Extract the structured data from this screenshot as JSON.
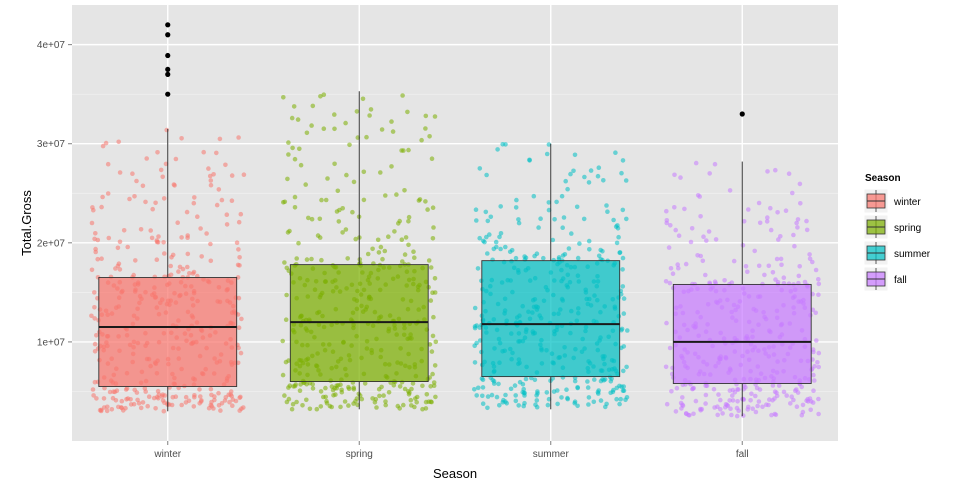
{
  "chart_data": {
    "type": "boxplot",
    "xlabel": "Season",
    "ylabel": "Total.Gross",
    "categories": [
      "winter",
      "spring",
      "summer",
      "fall"
    ],
    "ylim": [
      0,
      44000000
    ],
    "y_ticks": [
      10000000,
      20000000,
      30000000,
      40000000
    ],
    "y_tick_labels": [
      "1e+07",
      "2e+07",
      "3e+07",
      "4e+07"
    ],
    "grid": true,
    "legend": {
      "title": "Season",
      "position": "right",
      "entries": [
        "winter",
        "spring",
        "summer",
        "fall"
      ]
    },
    "colors": {
      "winter": "#F8766D",
      "spring": "#7CAE00",
      "summer": "#00BFC4",
      "fall": "#C77CFF",
      "panel": "#E5E5E5",
      "grid": "#FFFFFF"
    },
    "boxes": [
      {
        "category": "winter",
        "whisker_low": 3000000,
        "q1": 5500000,
        "median": 11500000,
        "q3": 16500000,
        "whisker_high": 31500000,
        "outliers": [
          35000000,
          37000000,
          37500000,
          38900000,
          41000000,
          42000000
        ]
      },
      {
        "category": "spring",
        "whisker_low": 3200000,
        "q1": 6000000,
        "median": 12000000,
        "q3": 17800000,
        "whisker_high": 35300000,
        "outliers": []
      },
      {
        "category": "summer",
        "whisker_low": 3200000,
        "q1": 6500000,
        "median": 11800000,
        "q3": 18200000,
        "whisker_high": 30000000,
        "outliers": []
      },
      {
        "category": "fall",
        "whisker_low": 2500000,
        "q1": 5800000,
        "median": 10000000,
        "q3": 15800000,
        "whisker_high": 28200000,
        "outliers": [
          33000000
        ]
      }
    ],
    "jitter_points_per_group": [
      420,
      440,
      420,
      400
    ]
  }
}
